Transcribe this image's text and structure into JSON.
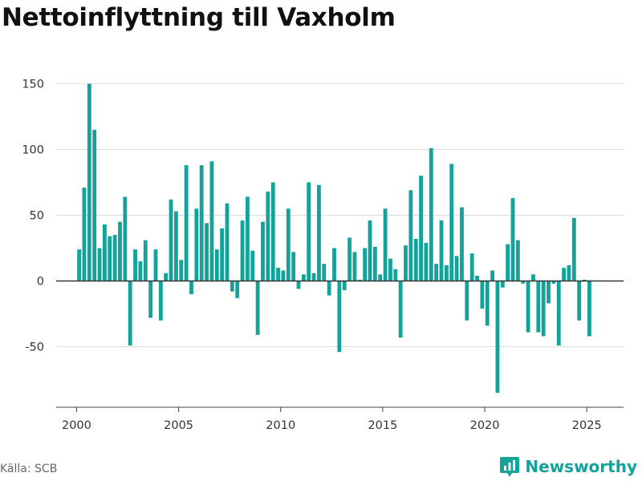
{
  "title": "Nettoinflyttning till Vaxholm",
  "source": "Källa: SCB",
  "brand": {
    "name": "Newsworthy",
    "icon": "newsworthy-logo-icon"
  },
  "colors": {
    "bar": "#14a39a",
    "brand": "#14a39a",
    "grid": "#dddddd",
    "zero_line": "#333333",
    "axis": "#444444"
  },
  "chart_data": {
    "type": "bar",
    "title": "Nettoinflyttning till Vaxholm",
    "xlabel": "",
    "ylabel": "",
    "frequency": "quarterly",
    "start": "2000 Q1",
    "ylim": [
      -96,
      160
    ],
    "xlim": [
      1999.0,
      2026.8
    ],
    "yticks": [
      -50,
      0,
      50,
      100,
      150
    ],
    "xticks": [
      2000,
      2005,
      2010,
      2015,
      2020,
      2025
    ],
    "grid": true,
    "legend": "none",
    "series": [
      {
        "values": [
          24,
          71,
          150,
          115,
          25,
          43,
          34,
          35,
          45,
          64,
          -49,
          24,
          15,
          31,
          -28,
          24,
          -30,
          6,
          62,
          53,
          16,
          88,
          -10,
          55,
          88,
          44,
          91,
          24,
          40,
          59,
          -8,
          -13,
          46,
          64,
          23,
          -41,
          45,
          68,
          75,
          10,
          8,
          55,
          22,
          -6,
          5,
          75,
          6,
          73,
          13,
          -11,
          25,
          -54,
          -7,
          33,
          22,
          1,
          25,
          46,
          26,
          5,
          55,
          17,
          9,
          -43,
          27,
          69,
          32,
          80,
          29,
          101,
          13,
          46,
          12,
          89,
          19,
          56,
          -30,
          21,
          4,
          -21,
          -34,
          8,
          -85,
          -5,
          28,
          63,
          31,
          -2,
          -39,
          5,
          -39,
          -42,
          -17,
          -2,
          -49,
          10,
          12,
          48,
          -30,
          1,
          -42
        ]
      }
    ]
  }
}
